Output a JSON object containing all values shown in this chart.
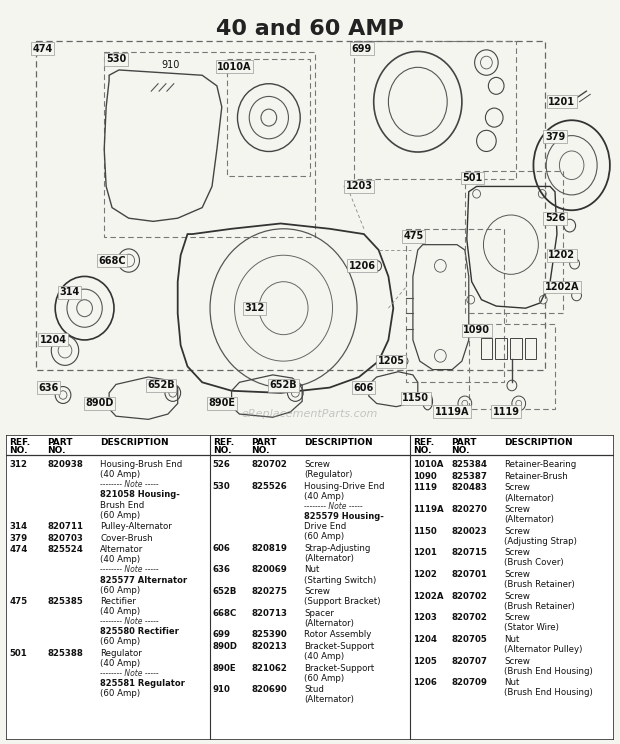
{
  "title": "40 and 60 AMP",
  "title_fontsize": 16,
  "title_fontweight": "bold",
  "bg_color": "#f5f5f0",
  "watermark": "eReplacementParts.com",
  "col1_data": [
    [
      "312",
      "820938",
      "Housing-Brush End\n(40 Amp)\n-------- Note -----\n821058 Housing-\nBrush End\n(60 Amp)"
    ],
    [
      "314",
      "820711",
      "Pulley-Alternator"
    ],
    [
      "379",
      "820703",
      "Cover-Brush"
    ],
    [
      "474",
      "825524",
      "Alternator\n(40 Amp)\n-------- Note -----\n825577 Alternator\n(60 Amp)"
    ],
    [
      "475",
      "825385",
      "Rectifier\n(40 Amp)\n-------- Note -----\n825580 Rectifier\n(60 Amp)"
    ],
    [
      "501",
      "825388",
      "Regulator\n(40 Amp)\n-------- Note -----\n825581 Regulator\n(60 Amp)"
    ]
  ],
  "col2_data": [
    [
      "526",
      "820702",
      "Screw\n(Regulator)"
    ],
    [
      "530",
      "825526",
      "Housing-Drive End\n(40 Amp)\n-------- Note -----\n825579 Housing-\nDrive End\n(60 Amp)"
    ],
    [
      "606",
      "820819",
      "Strap-Adjusting\n(Alternator)"
    ],
    [
      "636",
      "820069",
      "Nut\n(Starting Switch)"
    ],
    [
      "652B",
      "820275",
      "Screw\n(Support Bracket)"
    ],
    [
      "668C",
      "820713",
      "Spacer\n(Alternator)"
    ],
    [
      "699",
      "825390",
      "Rotor Assembly"
    ],
    [
      "890D",
      "820213",
      "Bracket-Support\n(40 Amp)"
    ],
    [
      "890E",
      "821062",
      "Bracket-Support\n(60 Amp)"
    ],
    [
      "910",
      "820690",
      "Stud\n(Alternator)"
    ]
  ],
  "col3_data": [
    [
      "1010A",
      "825384",
      "Retainer-Bearing"
    ],
    [
      "1090",
      "825387",
      "Retainer-Brush"
    ],
    [
      "1119",
      "820483",
      "Screw\n(Alternator)"
    ],
    [
      "1119A",
      "820270",
      "Screw\n(Alternator)"
    ],
    [
      "1150",
      "820023",
      "Screw\n(Adjusting Strap)"
    ],
    [
      "1201",
      "820715",
      "Screw\n(Brush Cover)"
    ],
    [
      "1202",
      "820701",
      "Screw\n(Brush Retainer)"
    ],
    [
      "1202A",
      "820702",
      "Screw\n(Brush Retainer)"
    ],
    [
      "1203",
      "820702",
      "Screw\n(Stator Wire)"
    ],
    [
      "1204",
      "820705",
      "Nut\n(Alternator Pulley)"
    ],
    [
      "1205",
      "820707",
      "Screw\n(Brush End Housing)"
    ],
    [
      "1206",
      "820709",
      "Nut\n(Brush End Housing)"
    ]
  ]
}
